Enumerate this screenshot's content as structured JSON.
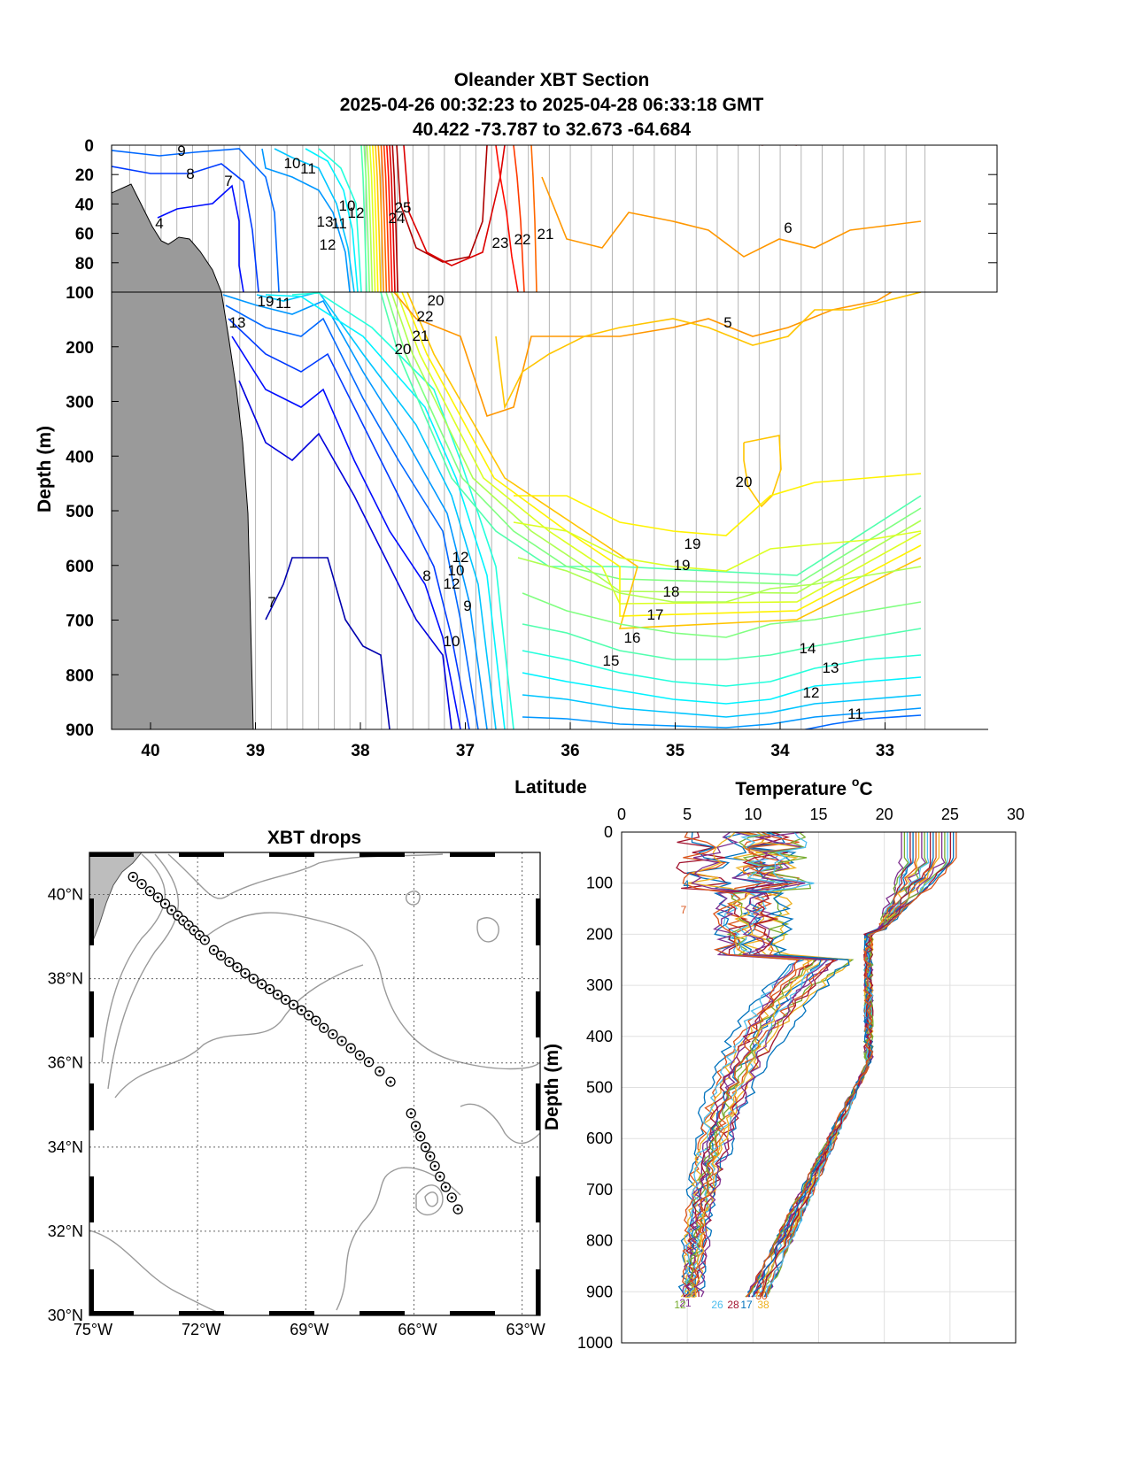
{
  "section": {
    "title_lines": [
      "Oleander XBT Section",
      "2025-04-26 00:32:23 to 2025-04-28 06:33:18 GMT",
      "40.422 -73.787 to 32.673 -64.684"
    ],
    "xlabel": "Latitude",
    "ylabel": "Depth (m)",
    "x_ticks": [
      "40",
      "39",
      "38",
      "37",
      "36",
      "35",
      "34",
      "33"
    ],
    "y_ticks_upper": [
      "0",
      "20",
      "40",
      "60",
      "80",
      "100"
    ],
    "y_ticks_lower": [
      "200",
      "300",
      "400",
      "500",
      "600",
      "700",
      "800",
      "900"
    ],
    "contour_labels": [
      "9",
      "8",
      "7",
      "4",
      "10",
      "11",
      "12",
      "13",
      "12",
      "11",
      "10",
      "25",
      "24",
      "23",
      "22",
      "21",
      "20",
      "22",
      "21",
      "20",
      "19",
      "11",
      "13",
      "12",
      "10",
      "12",
      "9",
      "8",
      "10",
      "7",
      "6",
      "5",
      "20",
      "19",
      "19",
      "18",
      "17",
      "16",
      "15",
      "14",
      "13",
      "12",
      "11",
      "10",
      "9"
    ]
  },
  "map": {
    "title": "XBT drops",
    "lat_labels": [
      "40°N",
      "38°N",
      "36°N",
      "34°N",
      "32°N",
      "30°N"
    ],
    "lon_labels": [
      "75°W",
      "72°W",
      "69°W",
      "66°W",
      "63°W"
    ]
  },
  "profile": {
    "title": "Temperature °C",
    "title_sup": "o",
    "title_main": "Temperature ",
    "title_unit": "C",
    "ylabel": "Depth (m)",
    "x_ticks": [
      "0",
      "5",
      "10",
      "15",
      "20",
      "25",
      "30"
    ],
    "y_ticks": [
      "0",
      "100",
      "200",
      "300",
      "400",
      "500",
      "600",
      "700",
      "800",
      "900",
      "1000"
    ],
    "drop_labels": [
      "4",
      "7",
      "20",
      "21",
      "12",
      "26",
      "28",
      "17",
      "30",
      "38"
    ]
  },
  "chart_data": [
    {
      "type": "contour",
      "title": "Oleander XBT Section\n2025-04-26 00:32:23 to 2025-04-28 06:33:18 GMT\n40.422 -73.787 to 32.673 -64.684",
      "xlabel": "Latitude",
      "ylabel": "Depth (m)",
      "xlim": [
        40.5,
        32.6
      ],
      "ylim": [
        900,
        0
      ],
      "contour_levels": [
        4,
        5,
        6,
        7,
        8,
        9,
        10,
        11,
        12,
        13,
        14,
        15,
        16,
        17,
        18,
        19,
        20,
        21,
        22,
        23,
        24,
        25
      ],
      "drop_latitudes": [
        40.42,
        40.25,
        40.1,
        39.95,
        39.8,
        39.65,
        39.5,
        39.35,
        39.2,
        39.05,
        38.9,
        38.75,
        38.6,
        38.45,
        38.3,
        38.15,
        38.0,
        37.85,
        37.7,
        37.55,
        37.4,
        37.25,
        37.1,
        36.95,
        36.8,
        36.65,
        36.45,
        36.25,
        36.05,
        35.85,
        35.65,
        35.45,
        35.25,
        35.05,
        34.85,
        34.65,
        34.45,
        34.25,
        34.05,
        33.85,
        33.65,
        33.45,
        33.25,
        33.05,
        32.85,
        32.67
      ],
      "isotherms_deep": [
        {
          "temp": 20,
          "depth_range_m": [
            50,
            90
          ]
        },
        {
          "temp": 19,
          "depth_range_m": [
            150,
            210
          ]
        },
        {
          "temp": 18,
          "depth_range_m": [
            450,
            580
          ]
        },
        {
          "temp": 17,
          "depth_range_m": [
            510,
            620
          ]
        },
        {
          "temp": 16,
          "depth_range_m": [
            560,
            670
          ]
        },
        {
          "temp": 15,
          "depth_range_m": [
            620,
            720
          ]
        },
        {
          "temp": 14,
          "depth_range_m": [
            660,
            760
          ]
        },
        {
          "temp": 13,
          "depth_range_m": [
            700,
            800
          ]
        },
        {
          "temp": 12,
          "depth_range_m": [
            730,
            830
          ]
        },
        {
          "temp": 11,
          "depth_range_m": [
            770,
            870
          ]
        },
        {
          "temp": 10,
          "depth_range_m": [
            820,
            900
          ]
        },
        {
          "temp": 9,
          "depth_range_m": [
            870,
            900
          ]
        }
      ]
    },
    {
      "type": "map",
      "title": "XBT drops",
      "lon_range": [
        -75,
        -62.5
      ],
      "lat_range": [
        30,
        41
      ],
      "drops": [
        [
          -73.79,
          40.42
        ],
        [
          -73.55,
          40.25
        ],
        [
          -73.32,
          40.08
        ],
        [
          -73.1,
          39.93
        ],
        [
          -72.9,
          39.78
        ],
        [
          -72.72,
          39.63
        ],
        [
          -72.55,
          39.5
        ],
        [
          -72.4,
          39.38
        ],
        [
          -72.25,
          39.27
        ],
        [
          -72.1,
          39.15
        ],
        [
          -71.95,
          39.03
        ],
        [
          -71.8,
          38.92
        ],
        [
          -71.55,
          38.68
        ],
        [
          -71.35,
          38.55
        ],
        [
          -71.12,
          38.4
        ],
        [
          -70.9,
          38.27
        ],
        [
          -70.68,
          38.13
        ],
        [
          -70.45,
          38.0
        ],
        [
          -70.22,
          37.87
        ],
        [
          -70.0,
          37.75
        ],
        [
          -69.78,
          37.62
        ],
        [
          -69.56,
          37.5
        ],
        [
          -69.34,
          37.38
        ],
        [
          -69.12,
          37.25
        ],
        [
          -68.92,
          37.13
        ],
        [
          -68.72,
          37.0
        ],
        [
          -68.5,
          36.83
        ],
        [
          -68.25,
          36.68
        ],
        [
          -68.0,
          36.52
        ],
        [
          -67.75,
          36.35
        ],
        [
          -67.5,
          36.18
        ],
        [
          -67.25,
          36.02
        ],
        [
          -66.95,
          35.8
        ],
        [
          -66.65,
          35.55
        ],
        [
          -66.08,
          34.8
        ],
        [
          -65.95,
          34.5
        ],
        [
          -65.82,
          34.25
        ],
        [
          -65.68,
          34.0
        ],
        [
          -65.55,
          33.78
        ],
        [
          -65.42,
          33.55
        ],
        [
          -65.28,
          33.3
        ],
        [
          -65.12,
          33.05
        ],
        [
          -64.95,
          32.8
        ],
        [
          -64.78,
          32.52
        ]
      ]
    },
    {
      "type": "line",
      "title": "Temperature °C",
      "ylabel": "Depth (m)",
      "xlim": [
        0,
        30
      ],
      "ylim": [
        1000,
        0
      ],
      "series_groups": [
        {
          "group": "slope-shelf profiles",
          "approx_temp_at_depth": [
            [
              0,
              8
            ],
            [
              100,
              8
            ],
            [
              200,
              12
            ],
            [
              400,
              8
            ],
            [
              600,
              5.5
            ],
            [
              900,
              4.5
            ]
          ]
        },
        {
          "group": "sargasso profiles",
          "approx_temp_at_depth": [
            [
              0,
              22
            ],
            [
              100,
              20
            ],
            [
              300,
              18.5
            ],
            [
              500,
              17
            ],
            [
              700,
              13
            ],
            [
              900,
              10
            ]
          ]
        }
      ]
    }
  ]
}
